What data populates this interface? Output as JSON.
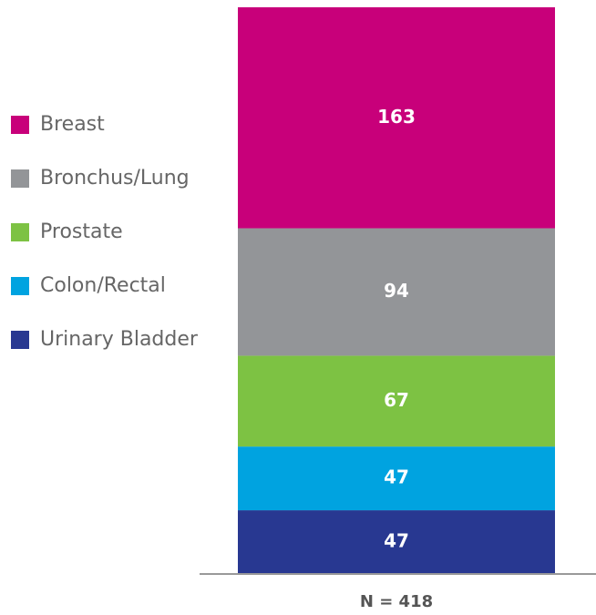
{
  "chart_data": {
    "type": "stacked_bar",
    "categories": [
      "N = 418"
    ],
    "series": [
      {
        "name": "Breast",
        "color": "#c8007a",
        "values": [
          163
        ]
      },
      {
        "name": "Bronchus/Lung",
        "color": "#939598",
        "values": [
          94
        ]
      },
      {
        "name": "Prostate",
        "color": "#7dc243",
        "values": [
          67
        ]
      },
      {
        "name": "Colon/Rectal",
        "color": "#00a3e0",
        "values": [
          47
        ]
      },
      {
        "name": "Urinary Bladder",
        "color": "#283891",
        "values": [
          47
        ]
      }
    ],
    "ylim": [
      0,
      418
    ],
    "legend": "left"
  }
}
